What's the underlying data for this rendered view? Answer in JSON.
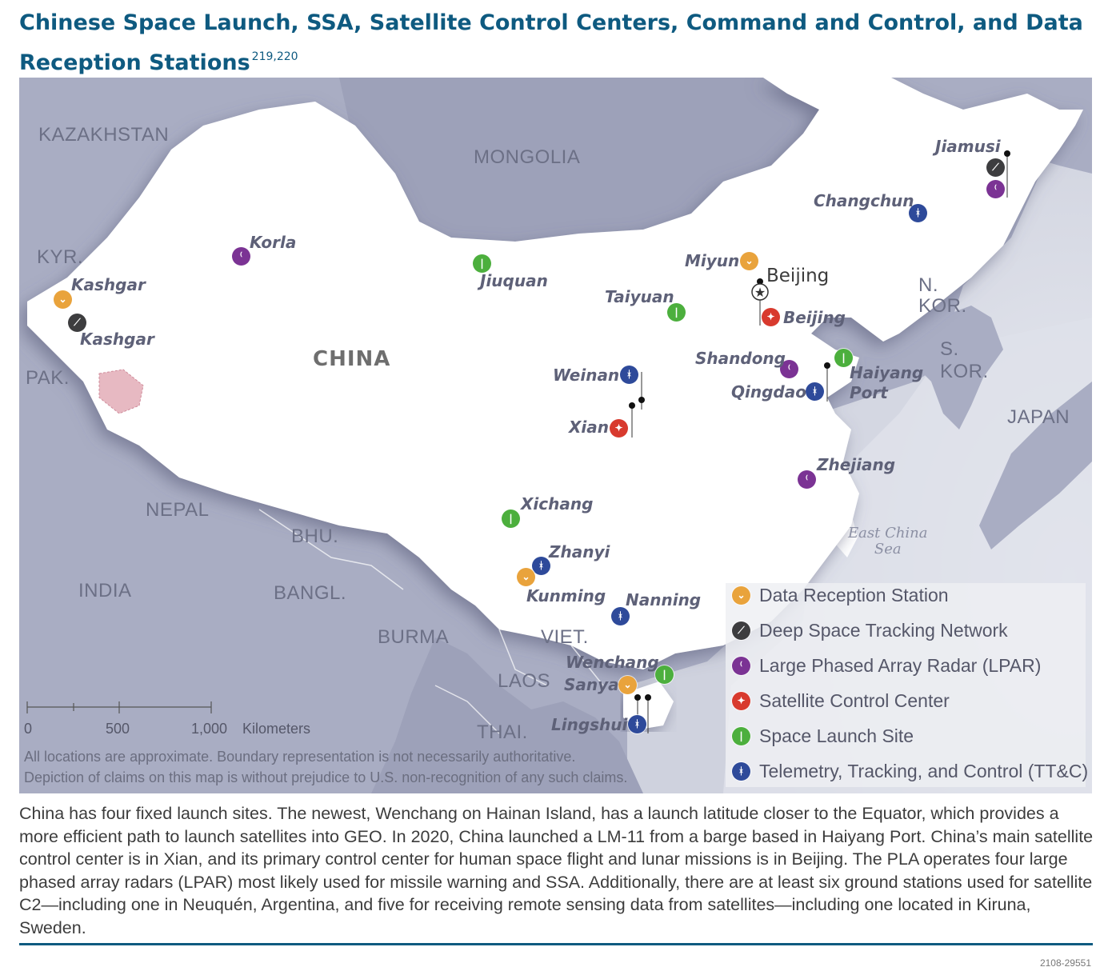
{
  "title": {
    "text": "Chinese Space Launch, SSA, Satellite Control Centers, Command and Control, and Data Reception Stations",
    "footnotes": "219,220"
  },
  "map": {
    "country_labels": {
      "kazakhstan": "KAZAKHSTAN",
      "mongolia": "MONGOLIA",
      "kyrgyzstan": "KYR.",
      "pakistan": "PAK.",
      "china": "CHINA",
      "nepal": "NEPAL",
      "bhutan": "BHU.",
      "india": "INDIA",
      "bangladesh": "BANGL.",
      "burma": "BURMA",
      "vietnam": "VIET.",
      "laos": "LAOS",
      "thailand": "THAI.",
      "north_korea": [
        "N.",
        "KOR."
      ],
      "south_korea": [
        "S.",
        "KOR."
      ],
      "japan": "JAPAN"
    },
    "sea_label": [
      "East China",
      "Sea"
    ],
    "city_label": "Beijing",
    "sites": [
      {
        "id": "jiamusi",
        "label": "Jiamusi",
        "types": [
          "Deep Space Tracking Network",
          "Large Phased Array Radar (LPAR)"
        ]
      },
      {
        "id": "changchun",
        "label": "Changchun",
        "types": [
          "Telemetry, Tracking, and Control (TT&C)"
        ]
      },
      {
        "id": "korla",
        "label": "Korla",
        "types": [
          "Large Phased Array Radar (LPAR)"
        ]
      },
      {
        "id": "kashgar-receive",
        "label": "Kashgar",
        "types": [
          "Data Reception Station"
        ]
      },
      {
        "id": "kashgar-deep",
        "label": "Kashgar",
        "types": [
          "Deep Space Tracking Network"
        ]
      },
      {
        "id": "jiuquan",
        "label": "Jiuquan",
        "types": [
          "Space Launch Site"
        ]
      },
      {
        "id": "miyun",
        "label": "Miyun",
        "types": [
          "Data Reception Station"
        ]
      },
      {
        "id": "taiyuan",
        "label": "Taiyuan",
        "types": [
          "Space Launch Site"
        ]
      },
      {
        "id": "beijing-control",
        "label": "Beijing",
        "types": [
          "Satellite Control Center"
        ]
      },
      {
        "id": "shandong",
        "label": "Shandong",
        "types": [
          "Large Phased Array Radar (LPAR)"
        ]
      },
      {
        "id": "haiyang",
        "label": [
          "Haiyang",
          "Port"
        ],
        "types": [
          "Space Launch Site"
        ]
      },
      {
        "id": "qingdao",
        "label": "Qingdao",
        "types": [
          "Telemetry, Tracking, and Control (TT&C)"
        ]
      },
      {
        "id": "weinan",
        "label": "Weinan",
        "types": [
          "Telemetry, Tracking, and Control (TT&C)"
        ]
      },
      {
        "id": "xian",
        "label": "Xian",
        "types": [
          "Satellite Control Center"
        ]
      },
      {
        "id": "zhejiang",
        "label": "Zhejiang",
        "types": [
          "Large Phased Array Radar (LPAR)"
        ]
      },
      {
        "id": "xichang",
        "label": "Xichang",
        "types": [
          "Space Launch Site"
        ]
      },
      {
        "id": "zhanyi",
        "label": "Zhanyi",
        "types": [
          "Telemetry, Tracking, and Control (TT&C)"
        ]
      },
      {
        "id": "kunming",
        "label": "Kunming",
        "types": [
          "Data Reception Station"
        ]
      },
      {
        "id": "nanning",
        "label": "Nanning",
        "types": [
          "Telemetry, Tracking, and Control (TT&C)"
        ]
      },
      {
        "id": "wenchang",
        "label": "Wenchang",
        "types": [
          "Space Launch Site"
        ]
      },
      {
        "id": "sanya",
        "label": "Sanya",
        "types": [
          "Data Reception Station"
        ]
      },
      {
        "id": "lingshui",
        "label": "Lingshui",
        "types": [
          "Telemetry, Tracking, and Control (TT&C)"
        ]
      }
    ],
    "legend": [
      {
        "label": "Data Reception Station",
        "color": "#e9a33c",
        "icon": "dish-icon"
      },
      {
        "label": "Deep Space Tracking Network",
        "color": "#3d3d3f",
        "icon": "satellite-dish-icon"
      },
      {
        "label": "Large Phased Array Radar (LPAR)",
        "color": "#7b3394",
        "icon": "radar-icon"
      },
      {
        "label": "Satellite Control Center",
        "color": "#d83a2e",
        "icon": "control-dish-icon"
      },
      {
        "label": "Space Launch Site",
        "color": "#4caf3d",
        "icon": "rocket-icon"
      },
      {
        "label": "Telemetry, Tracking, and Control (TT&C)",
        "color": "#2e4a9a",
        "icon": "antenna-icon"
      }
    ],
    "scale": {
      "ticks": [
        "0",
        "500",
        "1,000"
      ],
      "unit": "Kilometers"
    },
    "disclaimer": [
      "All locations are approximate. Boundary representation is not necessarily authoritative.",
      "Depiction of claims on this map is without prejudice to U.S. non-recognition of any such claims."
    ]
  },
  "caption": "China has four fixed launch sites. The newest, Wenchang on Hainan Island, has a launch latitude closer to the Equator, which provides a more efficient path to launch satellites into GEO. In 2020, China launched a LM-11 from a barge based in Haiyang Port. China’s main satellite control center is in Xian, and its primary control center for human space flight and lunar missions is in Beijing. The PLA operates four large phased array radars (LPAR) most likely used for missile warning and SSA. Additionally, there are at least six ground stations used for satellite C2—including one in Neuquén, Argentina, and five for receiving remote sensing data from satellites—including one located in Kiruna, Sweden.",
  "figure_code": "2108-29551"
}
